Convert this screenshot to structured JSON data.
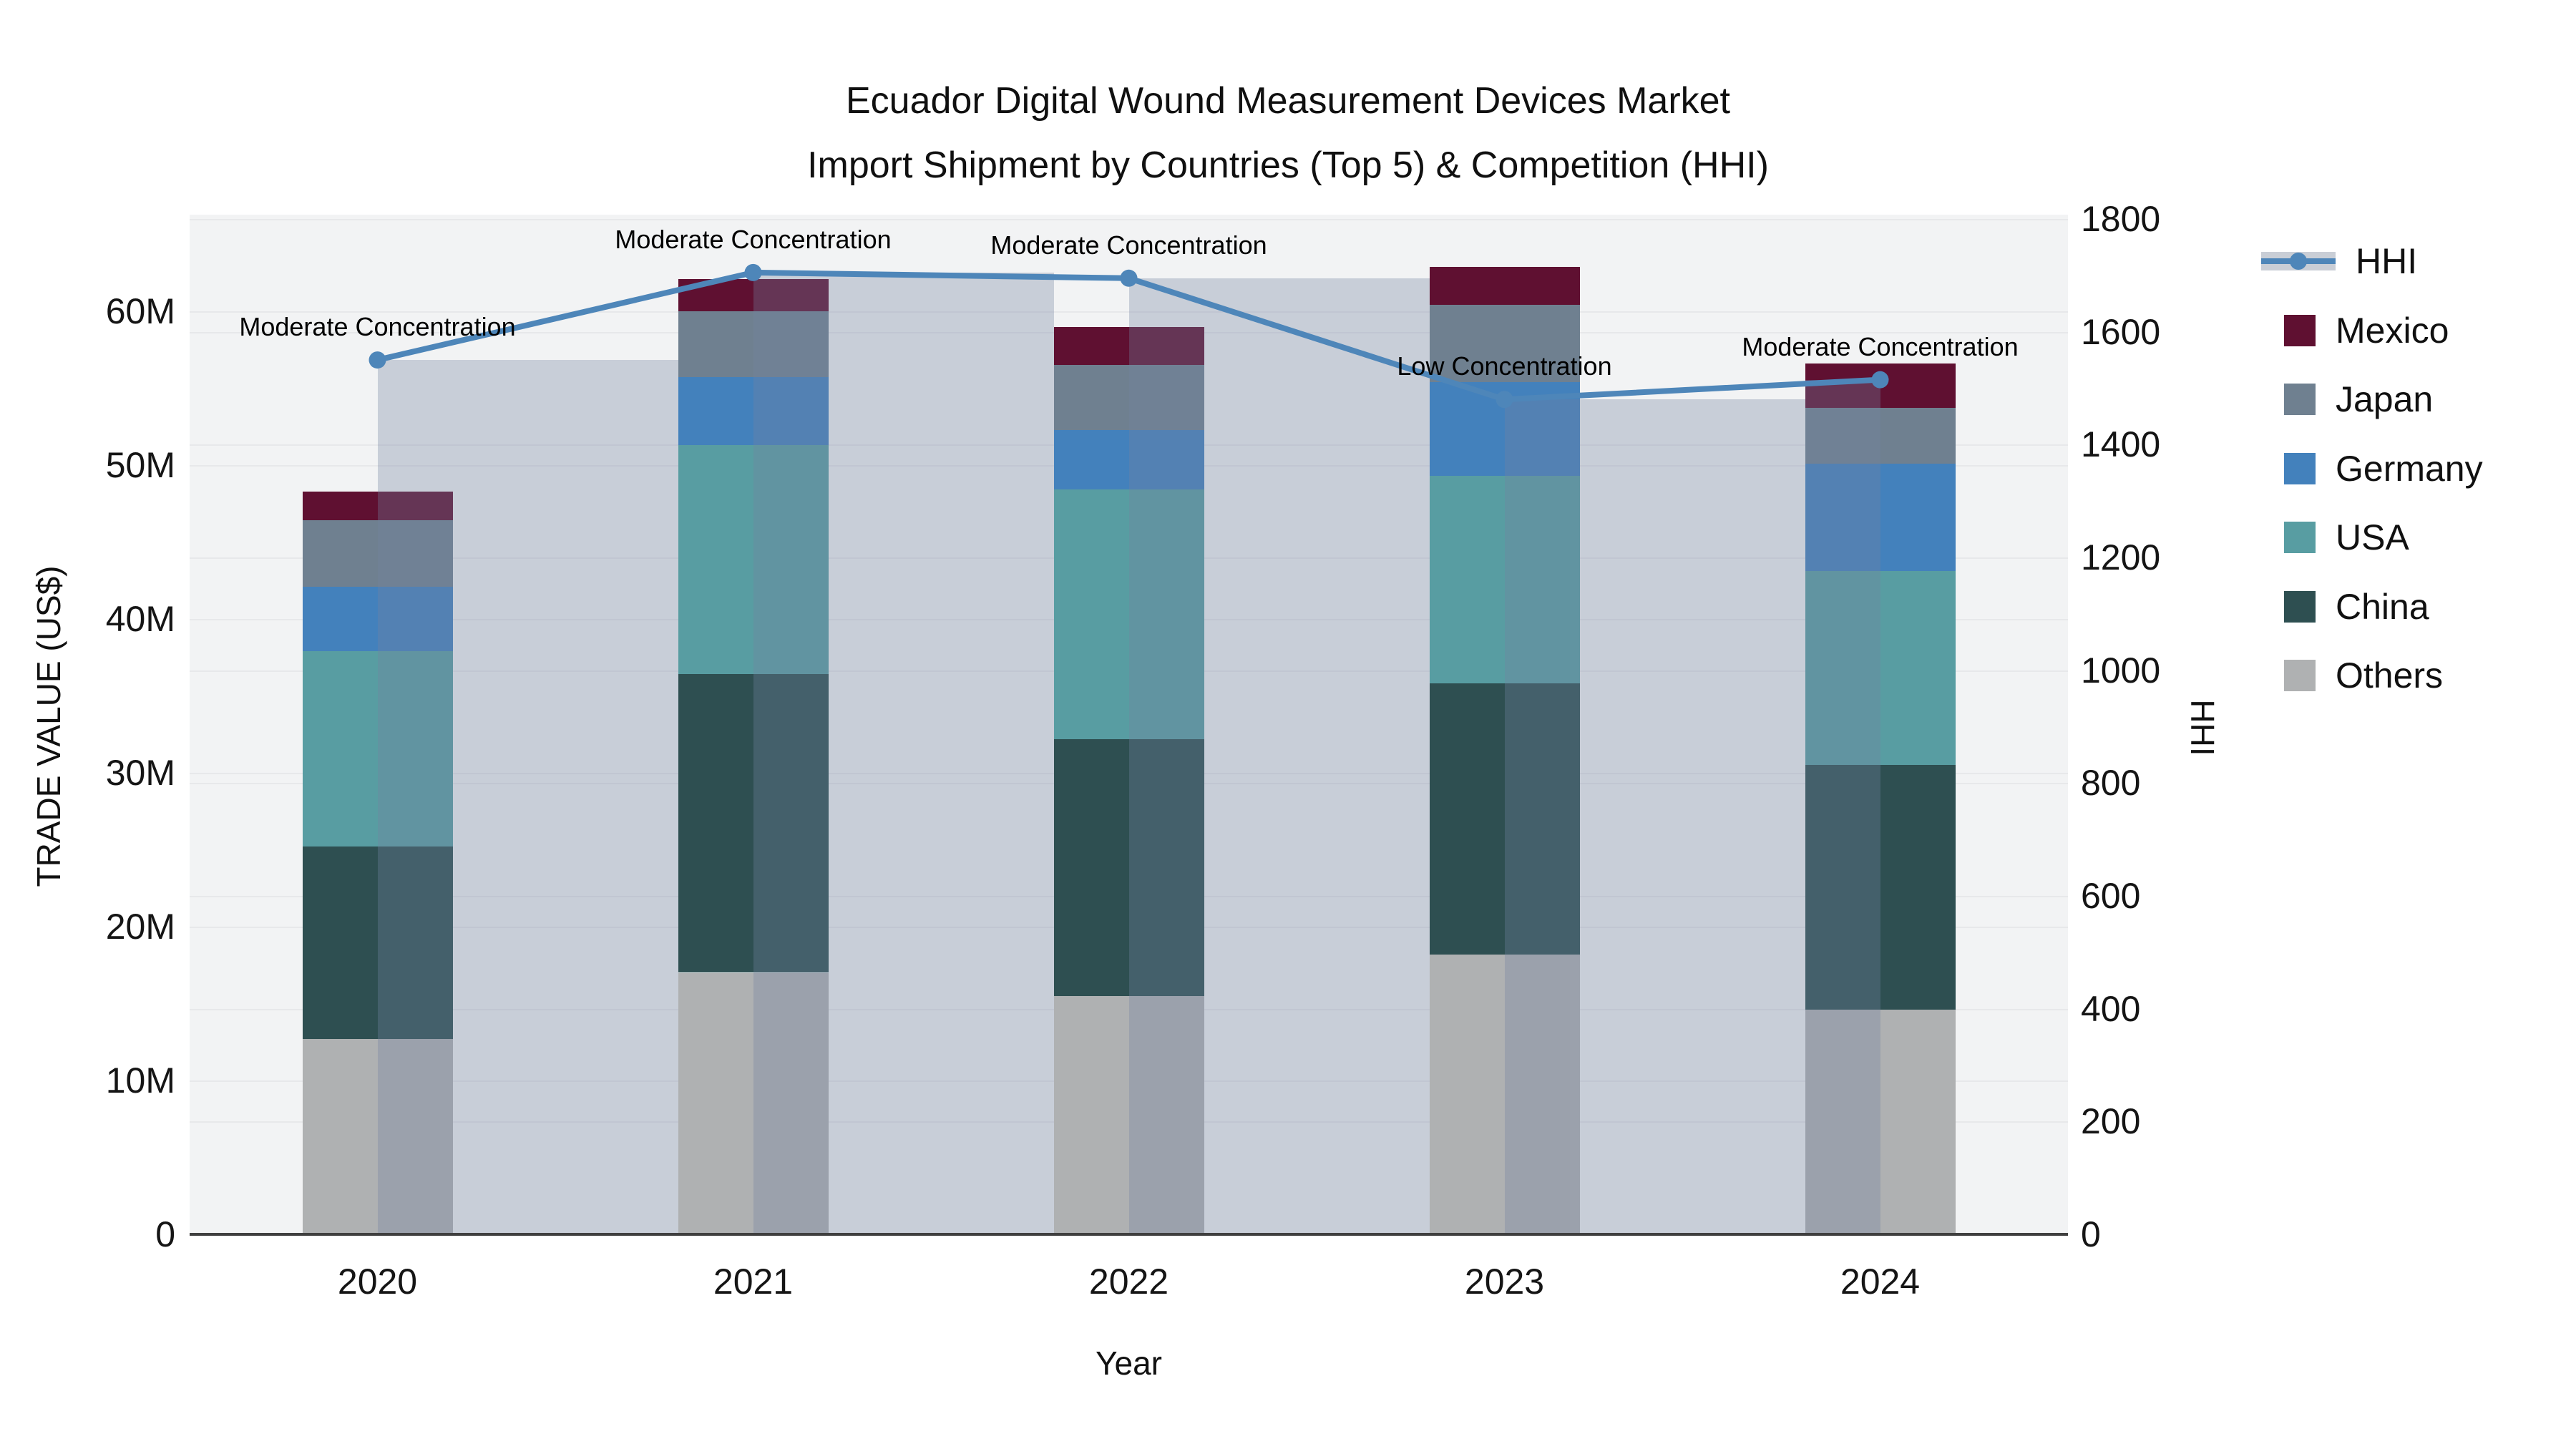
{
  "title": {
    "line1": "Ecuador Digital Wound Measurement Devices Market",
    "line2": "Import Shipment by Countries (Top 5) & Competition (HHI)"
  },
  "axes": {
    "y_left": {
      "title": "TRADE VALUE (US$)",
      "tick_labels": [
        "0",
        "10M",
        "20M",
        "30M",
        "40M",
        "50M",
        "60M"
      ],
      "tick_values": [
        0,
        10,
        20,
        30,
        40,
        50,
        60
      ],
      "units": "million US$"
    },
    "y_right": {
      "title": "HHI",
      "tick_labels": [
        "0",
        "200",
        "400",
        "600",
        "800",
        "1000",
        "1200",
        "1400",
        "1600",
        "1800"
      ],
      "tick_values": [
        0,
        200,
        400,
        600,
        800,
        1000,
        1200,
        1400,
        1600,
        1800
      ]
    },
    "x": {
      "title": "Year",
      "categories": [
        "2020",
        "2021",
        "2022",
        "2023",
        "2024"
      ]
    }
  },
  "legend": {
    "items": [
      {
        "label": "HHI",
        "type": "line",
        "color": "#4e86b9",
        "band_color": "#c9ced6"
      },
      {
        "label": "Mexico",
        "type": "square",
        "color": "#5f1031"
      },
      {
        "label": "Japan",
        "type": "square",
        "color": "#6f8090"
      },
      {
        "label": "Germany",
        "type": "square",
        "color": "#4381bc"
      },
      {
        "label": "USA",
        "type": "square",
        "color": "#589da2"
      },
      {
        "label": "China",
        "type": "square",
        "color": "#2e4f51"
      },
      {
        "label": "Others",
        "type": "square",
        "color": "#afb1b2"
      }
    ]
  },
  "chart_data": {
    "type": "bar",
    "subtype": "stacked bars with HHI line on secondary axis",
    "categories": [
      "2020",
      "2021",
      "2022",
      "2023",
      "2024"
    ],
    "series": [
      {
        "name": "Others",
        "color": "#afb1b2",
        "values": [
          12.7,
          17.0,
          15.5,
          18.2,
          14.6
        ]
      },
      {
        "name": "China",
        "color": "#2e4f51",
        "values": [
          12.5,
          19.4,
          16.7,
          17.6,
          15.9
        ]
      },
      {
        "name": "USA",
        "color": "#589da2",
        "values": [
          12.7,
          14.9,
          16.2,
          13.5,
          12.6
        ]
      },
      {
        "name": "Germany",
        "color": "#4381bc",
        "values": [
          4.2,
          4.4,
          3.9,
          6.1,
          7.0
        ]
      },
      {
        "name": "Japan",
        "color": "#6f8090",
        "values": [
          4.3,
          4.3,
          4.2,
          5.0,
          3.6
        ]
      },
      {
        "name": "Mexico",
        "color": "#5f1031",
        "values": [
          1.9,
          2.1,
          2.5,
          2.5,
          2.9
        ]
      }
    ],
    "totals": [
      48.3,
      62.1,
      59.0,
      62.9,
      56.6
    ],
    "hhi_line": {
      "name": "HHI",
      "color": "#4e86b9",
      "values": [
        1550,
        1705,
        1695,
        1480,
        1515
      ]
    },
    "annotations": [
      {
        "category": "2020",
        "text": "Moderate Concentration"
      },
      {
        "category": "2021",
        "text": "Moderate Concentration"
      },
      {
        "category": "2022",
        "text": "Moderate Concentration"
      },
      {
        "category": "2023",
        "text": "Low Concentration"
      },
      {
        "category": "2024",
        "text": "Moderate Concentration"
      }
    ],
    "xlabel": "Year",
    "ylabel_left": "TRADE VALUE (US$)",
    "ylabel_right": "HHI",
    "ylim_left": [
      0,
      66.3
    ],
    "ylim_right": [
      0,
      1807
    ],
    "grid": true,
    "legend_position": "right"
  }
}
